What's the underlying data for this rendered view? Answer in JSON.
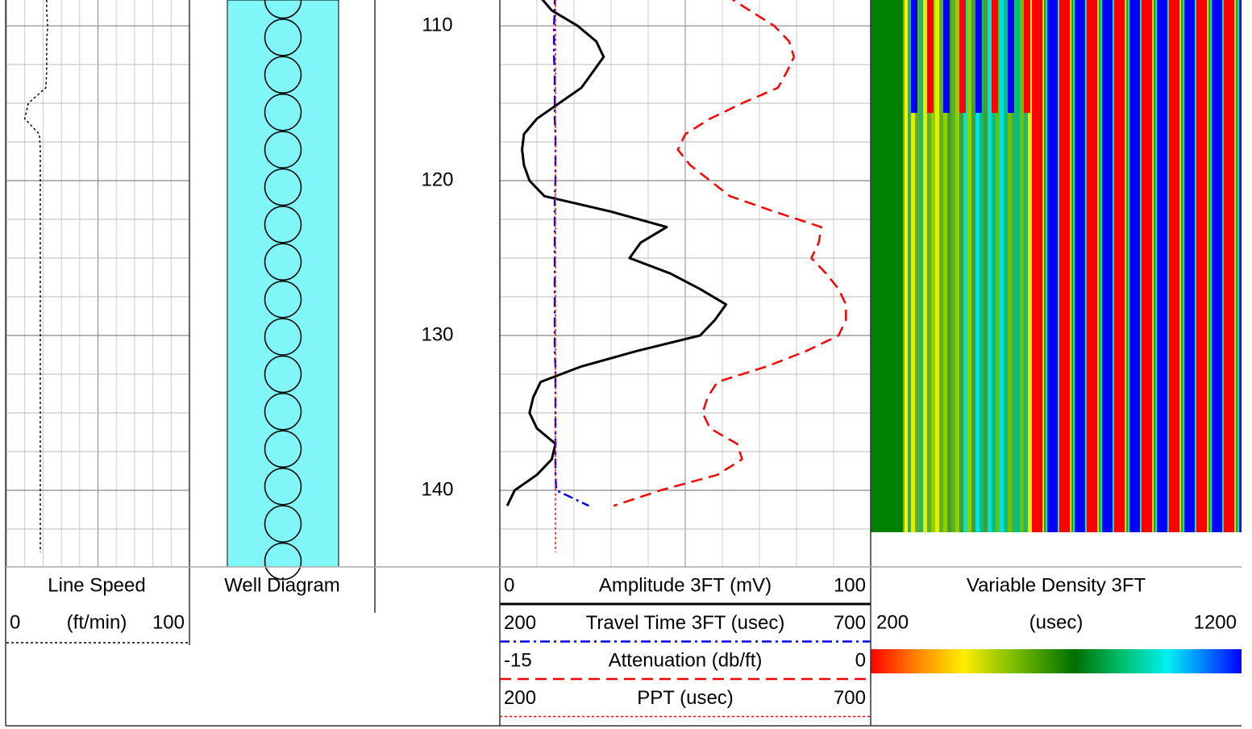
{
  "chart_data": {
    "type": "well_log",
    "depth": [
      108,
      109,
      110,
      111,
      112,
      113,
      114,
      115,
      116,
      117,
      118,
      119,
      120,
      121,
      122,
      123,
      124,
      125,
      126,
      127,
      128,
      129,
      130,
      131,
      132,
      133,
      134,
      135,
      136,
      137,
      138,
      139,
      140,
      141,
      142,
      143,
      144
    ],
    "ylim": [
      108.33,
      144.95
    ],
    "yticks": [
      110,
      120,
      130,
      140
    ],
    "grid_yticks": [
      110,
      112.5,
      115,
      117.5,
      120,
      122.5,
      125,
      127.5,
      130,
      132.5,
      135,
      137.5,
      140,
      142.5
    ],
    "tracks": [
      {
        "type": "curves",
        "title": "Line Speed",
        "xticks": [
          0,
          10,
          20,
          30,
          40,
          50,
          60,
          70,
          80,
          90,
          100
        ],
        "series": [
          {
            "unit": "(ft/min)",
            "xlim": [
              0,
              100
            ],
            "color": "#000000",
            "dash": "dotted",
            "values": [
              22,
              22,
              22.5,
              22,
              22,
              22,
              21.5,
              12,
              10,
              18,
              18.5,
              18.5,
              18.5,
              18.5,
              18.5,
              18.5,
              18.5,
              18.5,
              18.5,
              18.5,
              18.5,
              18.5,
              18.5,
              18.5,
              18.5,
              18.5,
              18.5,
              18.5,
              18.5,
              18.5,
              18.5,
              18.5,
              18.5,
              18.5,
              18.5,
              18.5,
              18.5
            ]
          }
        ]
      },
      {
        "type": "well_diagram",
        "title": "Well Diagram",
        "color": "#80f6f8"
      },
      {
        "type": "depth"
      },
      {
        "type": "curves",
        "xticks": [
          0,
          10,
          20,
          30,
          40,
          50,
          60,
          70,
          80,
          90,
          100
        ],
        "series": [
          {
            "name": "Amplitude 3FT (mV)",
            "xlim": [
              0,
              100
            ],
            "color": "#000000",
            "dash": "solid",
            "values": [
              10.4,
              14,
              21,
              26,
              28,
              25,
              22,
              16,
              10,
              6.5,
              6,
              6.5,
              8,
              12,
              30,
              45,
              38,
              35,
              46,
              54,
              61,
              58,
              54,
              37,
              22,
              11,
              9,
              8,
              10,
              15,
              14,
              10,
              4,
              2,
              null,
              null,
              null
            ]
          },
          {
            "name": "Travel Time 3FT (usec)",
            "xlim": [
              200,
              700
            ],
            "color": "#0000ff",
            "dash": "dashdot",
            "values": [
              274,
              274,
              273,
              273,
              273,
              274,
              274,
              274,
              274,
              275,
              275,
              275,
              275,
              274,
              274,
              274,
              274,
              274,
              274,
              274,
              274,
              274,
              274,
              274,
              275,
              275,
              275,
              275,
              275,
              275,
              275,
              275,
              276,
              320,
              null,
              null,
              null
            ]
          },
          {
            "name": "Attenuation (db/ft)",
            "xlim": [
              -15,
              0
            ],
            "color": "#ff0000",
            "dash": "dashed",
            "values": [
              -5.87,
              -4.9,
              -3.9,
              -3.3,
              -3.1,
              -3.4,
              -3.75,
              -5.2,
              -6.5,
              -7.5,
              -7.8,
              -7.3,
              -6.5,
              -5.7,
              -3.9,
              -2.0,
              -2.1,
              -2.4,
              -1.8,
              -1.3,
              -1.0,
              -1.0,
              -1.3,
              -2.6,
              -4.2,
              -6.2,
              -6.6,
              -6.8,
              -6.5,
              -5.4,
              -5.2,
              -6.2,
              -8.5,
              -10.4,
              null,
              null,
              null
            ]
          },
          {
            "name": "PPT (usec)",
            "xlim": [
              200,
              700
            ],
            "color": "#ff0000",
            "dash": "dotted",
            "values": [
              275,
              275,
              275,
              275,
              275,
              275,
              275,
              275,
              275,
              275,
              275,
              275,
              275,
              275,
              275,
              275,
              275,
              275,
              275,
              275,
              275,
              275,
              275,
              275,
              275,
              275,
              275,
              275,
              275,
              275,
              275,
              275,
              275,
              275,
              275,
              275,
              275
            ]
          }
        ]
      },
      {
        "type": "vdl",
        "title": "Variable Density 3FT",
        "unit": "(usec)",
        "xlim": [
          200,
          1200
        ]
      }
    ]
  }
}
